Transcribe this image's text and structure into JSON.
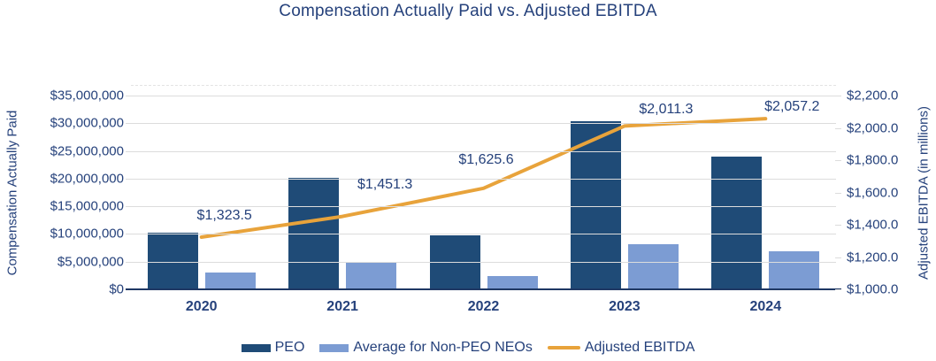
{
  "chart_data": {
    "type": "combo-bar-line",
    "title": "Compensation Actually Paid vs. Adjusted EBITDA",
    "categories": [
      "2020",
      "2021",
      "2022",
      "2023",
      "2024"
    ],
    "series": [
      {
        "name": "PEO",
        "type": "bar",
        "axis": "left",
        "color": "#1F4B77",
        "values": [
          10200000,
          20100000,
          9700000,
          30400000,
          23900000
        ]
      },
      {
        "name": "Average for Non-PEO NEOs",
        "type": "bar",
        "axis": "left",
        "color": "#7C9CD3",
        "values": [
          3000000,
          5000000,
          2400000,
          8100000,
          6900000
        ]
      },
      {
        "name": "Adjusted EBITDA",
        "type": "line",
        "axis": "right",
        "color": "#E8A33B",
        "values": [
          1323.5,
          1451.3,
          1625.6,
          2011.3,
          2057.2
        ],
        "point_labels": [
          "$1,323.5",
          "$1,451.3",
          "$1,625.6",
          "$2,011.3",
          "$2,057.2"
        ]
      }
    ],
    "left_axis": {
      "label": "Compensation Actually Paid",
      "min": 0,
      "max": 35000000,
      "tick_labels": [
        "$35,000,000",
        "$30,000,000",
        "$25,000,000",
        "$20,000,000",
        "$15,000,000",
        "$10,000,000",
        "$5,000,000",
        "$0"
      ]
    },
    "right_axis": {
      "label": "Adjusted EBITDA (in millions)",
      "min": 1000,
      "max": 2200,
      "tick_labels": [
        "$2,200.0",
        "$2,000.0",
        "$1,800.0",
        "$1,600.0",
        "$1,400.0",
        "$1,200.0",
        "$1,000.0"
      ]
    },
    "legend": [
      {
        "label": "PEO",
        "swatch": "rect",
        "color": "#1F4B77"
      },
      {
        "label": "Average for Non-PEO NEOs",
        "swatch": "rect",
        "color": "#7C9CD3"
      },
      {
        "label": "Adjusted EBITDA",
        "swatch": "line",
        "color": "#E8A33B"
      }
    ],
    "grid": "horizontal-on",
    "legend_position": "bottom",
    "colors": {
      "text": "#25417B",
      "gridline": "#DCDCDC",
      "axis_line": "#1F3864",
      "background": "#FFFFFF"
    }
  }
}
